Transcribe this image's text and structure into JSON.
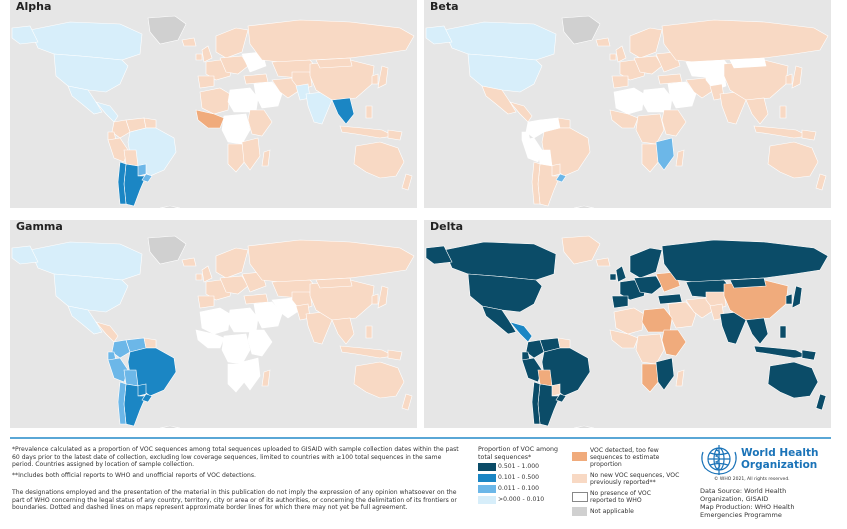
{
  "panels": [
    {
      "title": "Alpha"
    },
    {
      "title": "Beta"
    },
    {
      "title": "Gamma"
    },
    {
      "title": "Delta"
    }
  ],
  "colors": {
    "ocean": "#e6e6e6",
    "p_high": "#0b4c68",
    "p_mid": "#1b86c4",
    "p_low": "#6cb7e8",
    "p_vlow": "#d7eefa",
    "too_few": "#f0ab7c",
    "no_new": "#f8d9c4",
    "no_presence": "#ffffff",
    "na": "#d0d0d0"
  },
  "notes": {
    "footnote1": "*Prevalence calculated as a proportion of VOC sequences among total sequences uploaded to GISAID with sample collection dates within the past 60 days prior to the latest date of collection, excluding low coverage sequences, limited to countries with ≥100 total sequences in the same period. Countries assigned by location of sample collection.",
    "footnote2": "**Includes both official reports to WHO and unofficial reports of VOC detections.",
    "disclaimer": "The designations employed and the presentation of the material in this publication do not imply the expression of any opinion whatsoever on the part of WHO concerning the legal status of any country, territory, city or area or of its authorities, or concerning the delimitation of its frontiers or boundaries. Dotted and dashed lines on maps represent approximate border lines for which there may not yet be full agreement."
  },
  "legend": {
    "title": "Proportion of VOC among total sequences*",
    "prop_items": [
      {
        "label": "0.501 - 1.000",
        "color": "#0b4c68"
      },
      {
        "label": "0.101 - 0.500",
        "color": "#1b86c4"
      },
      {
        "label": "0.011 - 0.100",
        "color": "#6cb7e8"
      },
      {
        "label": ">0.000 - 0.010",
        "color": "#d7eefa"
      }
    ],
    "other_items": [
      {
        "label": "VOC detected, too few sequences to estimate proportion",
        "color": "#f0ab7c"
      },
      {
        "label": "No new VOC sequences, VOC previously reported**",
        "color": "#f8d9c4"
      },
      {
        "label": "No presence of VOC reported to WHO",
        "color": "#ffffff"
      },
      {
        "label": "Not applicable",
        "color": "#d0d0d0"
      }
    ]
  },
  "who": {
    "name_line1": "World Health",
    "name_line2": "Organization",
    "copyright": "© WHO 2021, All rights reserved.",
    "data_source": "Data Source: World Health Organization, GISAID",
    "map_production": "Map Production: WHO Health Emergencies Programme"
  }
}
